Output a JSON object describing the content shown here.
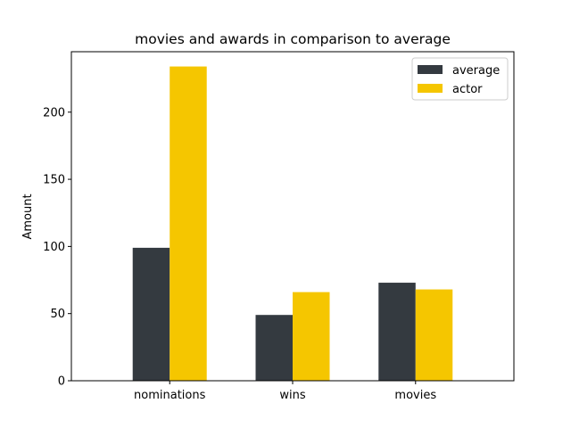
{
  "chart_data": {
    "type": "bar",
    "title": "movies and awards in comparison to average",
    "xlabel": "",
    "ylabel": "Amount",
    "categories": [
      "nominations",
      "wins",
      "movies"
    ],
    "series": [
      {
        "name": "average",
        "values": [
          99,
          49,
          73
        ],
        "color": "#343a40"
      },
      {
        "name": "actor",
        "values": [
          234,
          66,
          68
        ],
        "color": "#f5c600"
      }
    ],
    "ylim": [
      0,
      245
    ],
    "yticks": [
      0,
      50,
      100,
      150,
      200
    ],
    "grid": false,
    "legend_position": "top-right"
  }
}
